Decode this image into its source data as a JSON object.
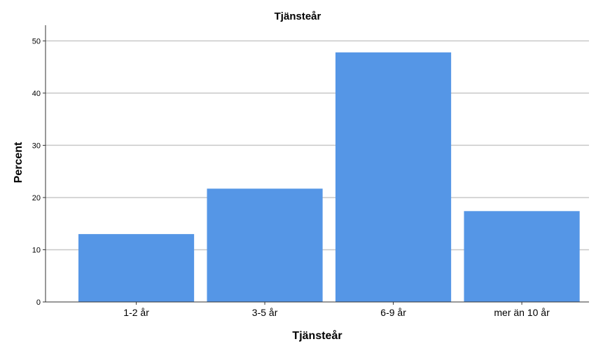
{
  "chart_data": {
    "type": "bar",
    "title": "Tjänsteår",
    "xlabel": "Tjänsteår",
    "ylabel": "Percent",
    "categories": [
      "1-2 år",
      "3-5 år",
      "6-9 år",
      "mer än 10 år"
    ],
    "values": [
      13.0,
      21.7,
      47.8,
      17.4
    ],
    "ylim": [
      0,
      53
    ],
    "yticks": [
      0,
      10,
      20,
      30,
      40,
      50
    ],
    "grid": true,
    "legend": "none",
    "colors": {
      "bar": "#5596e6",
      "grid": "#c8c8c8",
      "axis": "#333333"
    }
  }
}
